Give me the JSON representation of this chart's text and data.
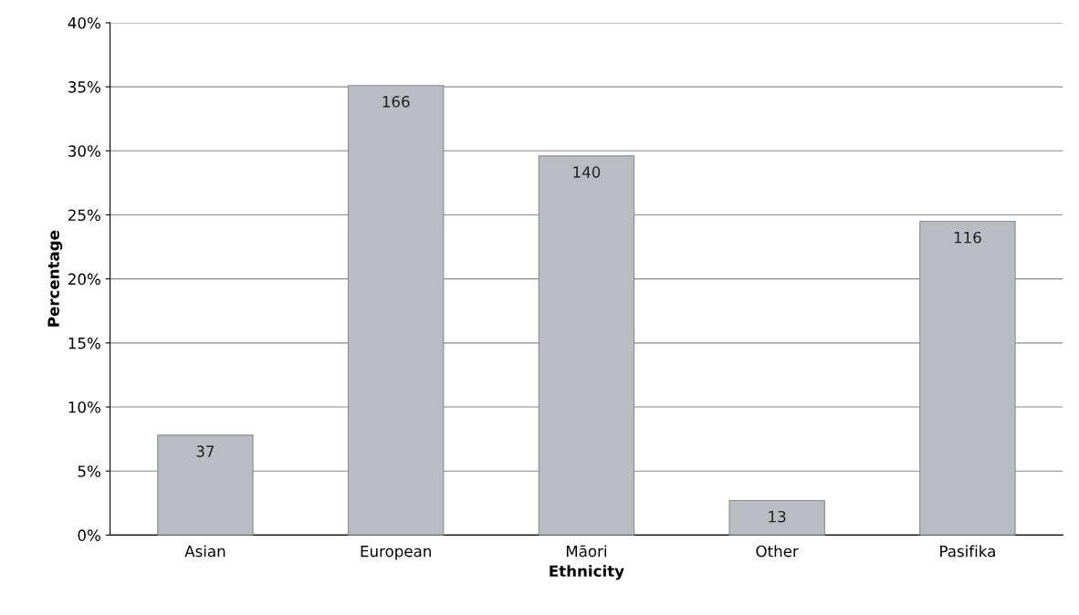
{
  "chart_data": {
    "type": "bar",
    "xlabel": "Ethnicity",
    "ylabel": "Percentage",
    "categories": [
      "Asian",
      "European",
      "Māori",
      "Other",
      "Pasifika"
    ],
    "values": [
      7.8,
      35.1,
      29.6,
      2.7,
      24.5
    ],
    "annotations": [
      {
        "text": "37",
        "x": "Asian",
        "y": 7.8
      },
      {
        "text": "166",
        "x": "European",
        "y": 35.1
      },
      {
        "text": "140",
        "x": "Māori",
        "y": 29.6
      },
      {
        "text": "13",
        "x": "Other",
        "y": 2.7
      },
      {
        "text": "116",
        "x": "Pasifika",
        "y": 24.5
      }
    ],
    "color": "#b9bcc2",
    "ylim": [
      0,
      40
    ],
    "yticks": [
      {
        "value": 0,
        "label": "0%"
      },
      {
        "value": 5,
        "label": "5%"
      },
      {
        "value": 10,
        "label": "10%"
      },
      {
        "value": 15,
        "label": "15%"
      },
      {
        "value": 20,
        "label": "20%"
      },
      {
        "value": 25,
        "label": "25%"
      },
      {
        "value": 30,
        "label": "30%"
      },
      {
        "value": 35,
        "label": "35%"
      },
      {
        "value": 40,
        "label": "40%"
      }
    ],
    "grid": "y",
    "legend": false
  }
}
